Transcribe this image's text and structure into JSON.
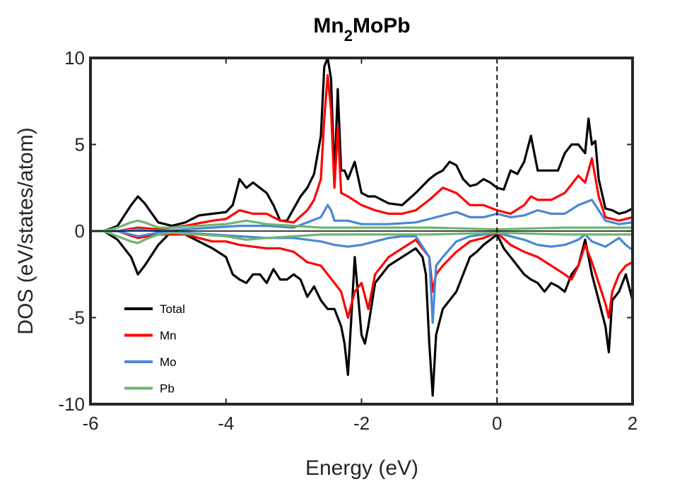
{
  "chart_data": {
    "type": "line",
    "title": "Mn",
    "title_subscript": "2",
    "title_suffix": "MoPb",
    "xlabel": "Energy (eV)",
    "ylabel": "DOS (eV/states/atom)",
    "xlim": [
      -6,
      2
    ],
    "ylim": [
      -10,
      10
    ],
    "xticks": [
      "-6",
      "-4",
      "-2",
      "0",
      "2"
    ],
    "yticks": [
      "10",
      "5",
      "0",
      "-5",
      "-10"
    ],
    "grid": false,
    "legend_position": "lower-left",
    "fermi_level": 0,
    "series": [
      {
        "name": "Total",
        "color": "#000000",
        "up": {
          "x": [
            -6.0,
            -5.8,
            -5.6,
            -5.4,
            -5.3,
            -5.2,
            -5.0,
            -4.8,
            -4.6,
            -4.4,
            -4.2,
            -4.0,
            -3.9,
            -3.8,
            -3.7,
            -3.6,
            -3.5,
            -3.4,
            -3.3,
            -3.2,
            -3.1,
            -3.0,
            -2.9,
            -2.8,
            -2.7,
            -2.6,
            -2.55,
            -2.5,
            -2.45,
            -2.4,
            -2.35,
            -2.3,
            -2.25,
            -2.2,
            -2.1,
            -2.0,
            -1.9,
            -1.8,
            -1.6,
            -1.4,
            -1.2,
            -1.0,
            -0.9,
            -0.8,
            -0.7,
            -0.6,
            -0.5,
            -0.4,
            -0.3,
            -0.2,
            -0.1,
            0.0,
            0.1,
            0.2,
            0.3,
            0.4,
            0.5,
            0.6,
            0.7,
            0.8,
            0.9,
            1.0,
            1.1,
            1.2,
            1.3,
            1.35,
            1.4,
            1.45,
            1.5,
            1.6,
            1.7,
            1.8,
            1.9,
            2.0
          ],
          "y": [
            0.0,
            0.0,
            0.3,
            1.5,
            2.0,
            1.6,
            0.5,
            0.3,
            0.5,
            0.9,
            1.0,
            1.1,
            1.5,
            3.0,
            2.5,
            2.8,
            2.5,
            2.2,
            1.5,
            0.6,
            0.6,
            1.3,
            2.0,
            2.5,
            3.3,
            5.5,
            9.5,
            10.0,
            8.8,
            3.0,
            8.2,
            3.5,
            3.5,
            3.0,
            4.0,
            2.2,
            2.0,
            2.0,
            1.6,
            1.5,
            2.2,
            3.0,
            3.3,
            3.5,
            4.0,
            3.8,
            3.0,
            2.6,
            2.7,
            3.0,
            2.8,
            2.5,
            2.4,
            3.5,
            3.3,
            4.0,
            5.5,
            3.5,
            3.5,
            3.5,
            3.5,
            4.5,
            5.0,
            5.0,
            4.5,
            6.5,
            5.0,
            5.2,
            3.0,
            1.3,
            1.2,
            1.0,
            1.1,
            1.3
          ]
        },
        "down": {
          "x": [
            -6.0,
            -5.8,
            -5.6,
            -5.4,
            -5.3,
            -5.2,
            -5.0,
            -4.8,
            -4.6,
            -4.4,
            -4.2,
            -4.0,
            -3.9,
            -3.8,
            -3.7,
            -3.6,
            -3.5,
            -3.4,
            -3.3,
            -3.2,
            -3.1,
            -3.0,
            -2.9,
            -2.8,
            -2.7,
            -2.6,
            -2.5,
            -2.4,
            -2.3,
            -2.25,
            -2.2,
            -2.15,
            -2.1,
            -2.0,
            -1.95,
            -1.9,
            -1.8,
            -1.6,
            -1.4,
            -1.2,
            -1.1,
            -1.05,
            -1.0,
            -0.95,
            -0.9,
            -0.8,
            -0.7,
            -0.6,
            -0.5,
            -0.4,
            -0.3,
            -0.2,
            -0.1,
            0.0,
            0.1,
            0.2,
            0.3,
            0.4,
            0.5,
            0.6,
            0.7,
            0.8,
            0.9,
            1.0,
            1.1,
            1.2,
            1.3,
            1.4,
            1.5,
            1.6,
            1.65,
            1.7,
            1.8,
            1.9,
            2.0
          ],
          "y": [
            0.0,
            0.0,
            -0.5,
            -1.5,
            -2.5,
            -2.0,
            -0.8,
            0.0,
            -0.2,
            -0.6,
            -1.0,
            -1.5,
            -2.5,
            -2.8,
            -3.0,
            -2.5,
            -2.5,
            -3.0,
            -2.2,
            -2.8,
            -2.8,
            -2.5,
            -2.8,
            -3.8,
            -3.2,
            -4.0,
            -4.5,
            -4.5,
            -5.5,
            -6.5,
            -8.3,
            -5.0,
            -1.5,
            -6.0,
            -6.5,
            -5.5,
            -3.0,
            -2.0,
            -1.5,
            -1.0,
            -1.5,
            -2.5,
            -6.5,
            -9.5,
            -6.0,
            -4.5,
            -4.0,
            -3.5,
            -2.5,
            -1.5,
            -1.2,
            -0.8,
            -0.5,
            -0.2,
            -1.0,
            -1.5,
            -2.0,
            -2.5,
            -2.8,
            -3.0,
            -3.5,
            -3.0,
            -3.2,
            -3.5,
            -2.5,
            -2.0,
            -0.5,
            -2.5,
            -4.0,
            -5.5,
            -7.0,
            -4.0,
            -3.5,
            -2.5,
            -4.0
          ]
        }
      },
      {
        "name": "Mn",
        "color": "#ff0000",
        "up": {
          "x": [
            -6.0,
            -5.6,
            -5.3,
            -5.0,
            -4.6,
            -4.2,
            -4.0,
            -3.8,
            -3.6,
            -3.4,
            -3.2,
            -3.0,
            -2.8,
            -2.7,
            -2.6,
            -2.55,
            -2.5,
            -2.45,
            -2.4,
            -2.35,
            -2.3,
            -2.2,
            -2.0,
            -1.8,
            -1.6,
            -1.4,
            -1.2,
            -1.0,
            -0.8,
            -0.6,
            -0.4,
            -0.2,
            0.0,
            0.2,
            0.4,
            0.5,
            0.6,
            0.8,
            1.0,
            1.2,
            1.3,
            1.4,
            1.5,
            1.6,
            1.8,
            2.0
          ],
          "y": [
            0.0,
            0.0,
            0.2,
            0.1,
            0.3,
            0.6,
            0.7,
            1.2,
            1.0,
            1.0,
            0.6,
            0.5,
            1.2,
            1.8,
            3.0,
            6.5,
            9.0,
            7.0,
            2.5,
            6.0,
            2.2,
            2.0,
            1.5,
            1.2,
            1.0,
            1.0,
            1.2,
            1.8,
            2.5,
            2.2,
            1.5,
            1.5,
            1.2,
            1.0,
            1.5,
            2.0,
            1.8,
            1.8,
            2.2,
            3.2,
            2.8,
            4.2,
            2.0,
            0.8,
            0.6,
            0.8
          ]
        },
        "down": {
          "x": [
            -6.0,
            -5.6,
            -5.3,
            -5.0,
            -4.6,
            -4.2,
            -4.0,
            -3.8,
            -3.6,
            -3.4,
            -3.2,
            -3.0,
            -2.8,
            -2.6,
            -2.4,
            -2.3,
            -2.2,
            -2.1,
            -2.0,
            -1.9,
            -1.8,
            -1.6,
            -1.4,
            -1.2,
            -1.0,
            -0.95,
            -0.9,
            -0.8,
            -0.6,
            -0.4,
            -0.2,
            0.0,
            0.2,
            0.4,
            0.6,
            0.8,
            1.0,
            1.1,
            1.2,
            1.3,
            1.4,
            1.5,
            1.6,
            1.65,
            1.7,
            1.8,
            1.9,
            2.0
          ],
          "y": [
            0.0,
            0.0,
            -0.4,
            -0.2,
            -0.2,
            -0.6,
            -0.6,
            -0.8,
            -0.9,
            -1.0,
            -1.0,
            -1.2,
            -1.8,
            -2.0,
            -3.0,
            -3.5,
            -5.0,
            -3.5,
            -3.0,
            -4.5,
            -2.5,
            -1.5,
            -1.0,
            -0.5,
            -1.5,
            -3.5,
            -2.5,
            -2.0,
            -1.2,
            -0.6,
            -0.4,
            -0.1,
            -0.8,
            -1.2,
            -1.5,
            -2.0,
            -2.5,
            -2.8,
            -2.0,
            -0.8,
            -1.8,
            -3.0,
            -4.2,
            -5.0,
            -3.5,
            -2.5,
            -2.0,
            -1.8
          ]
        }
      },
      {
        "name": "Mo",
        "color": "#4a87d6",
        "up": {
          "x": [
            -6.0,
            -5.6,
            -5.3,
            -5.0,
            -4.6,
            -4.2,
            -3.8,
            -3.4,
            -3.0,
            -2.8,
            -2.6,
            -2.5,
            -2.45,
            -2.4,
            -2.2,
            -2.0,
            -1.6,
            -1.2,
            -1.0,
            -0.8,
            -0.6,
            -0.4,
            -0.2,
            0.0,
            0.2,
            0.4,
            0.6,
            0.8,
            1.0,
            1.2,
            1.4,
            1.5,
            1.6,
            1.8,
            2.0
          ],
          "y": [
            0.0,
            0.0,
            0.1,
            0.0,
            0.1,
            0.2,
            0.3,
            0.3,
            0.2,
            0.5,
            0.8,
            1.5,
            1.2,
            0.6,
            0.6,
            0.4,
            0.4,
            0.5,
            0.7,
            0.9,
            1.1,
            0.8,
            0.8,
            1.0,
            0.8,
            0.9,
            1.2,
            1.0,
            1.0,
            1.5,
            1.8,
            1.2,
            0.6,
            0.4,
            0.5
          ]
        },
        "down": {
          "x": [
            -6.0,
            -5.6,
            -5.3,
            -5.0,
            -4.6,
            -4.2,
            -3.8,
            -3.4,
            -3.0,
            -2.8,
            -2.6,
            -2.4,
            -2.2,
            -2.0,
            -1.8,
            -1.6,
            -1.4,
            -1.2,
            -1.0,
            -0.95,
            -0.9,
            -0.8,
            -0.6,
            -0.4,
            -0.2,
            0.0,
            0.2,
            0.4,
            0.6,
            0.8,
            1.0,
            1.2,
            1.3,
            1.4,
            1.6,
            1.8,
            1.9,
            2.0
          ],
          "y": [
            0.0,
            0.0,
            -0.3,
            -0.1,
            -0.1,
            -0.2,
            -0.3,
            -0.4,
            -0.4,
            -0.5,
            -0.6,
            -0.8,
            -0.9,
            -0.8,
            -0.6,
            -0.4,
            -0.3,
            -0.3,
            -1.5,
            -5.3,
            -2.0,
            -1.5,
            -0.6,
            -0.3,
            -0.2,
            -0.1,
            -0.3,
            -0.5,
            -0.8,
            -0.9,
            -0.8,
            -0.5,
            -0.2,
            -0.6,
            -0.9,
            -0.4,
            -0.8,
            -1.1
          ]
        }
      },
      {
        "name": "Pb",
        "color": "#6fb56f",
        "up": {
          "x": [
            -6.0,
            -5.8,
            -5.6,
            -5.4,
            -5.3,
            -5.2,
            -5.0,
            -4.8,
            -4.4,
            -4.0,
            -3.7,
            -3.4,
            -3.0,
            -2.6,
            -2.0,
            -1.0,
            0.0,
            1.0,
            2.0
          ],
          "y": [
            0.0,
            0.0,
            0.2,
            0.5,
            0.6,
            0.5,
            0.2,
            0.2,
            0.3,
            0.4,
            0.6,
            0.4,
            0.3,
            0.2,
            0.2,
            0.2,
            0.1,
            0.2,
            0.2
          ]
        },
        "down": {
          "x": [
            -6.0,
            -5.8,
            -5.6,
            -5.4,
            -5.3,
            -5.2,
            -5.0,
            -4.8,
            -4.4,
            -4.0,
            -3.7,
            -3.4,
            -3.0,
            -2.6,
            -2.0,
            -1.0,
            0.0,
            1.0,
            2.0
          ],
          "y": [
            0.0,
            0.0,
            -0.3,
            -0.6,
            -0.7,
            -0.5,
            -0.2,
            -0.1,
            -0.2,
            -0.3,
            -0.5,
            -0.4,
            -0.3,
            -0.2,
            -0.2,
            -0.2,
            -0.1,
            -0.2,
            -0.2
          ]
        }
      }
    ]
  }
}
